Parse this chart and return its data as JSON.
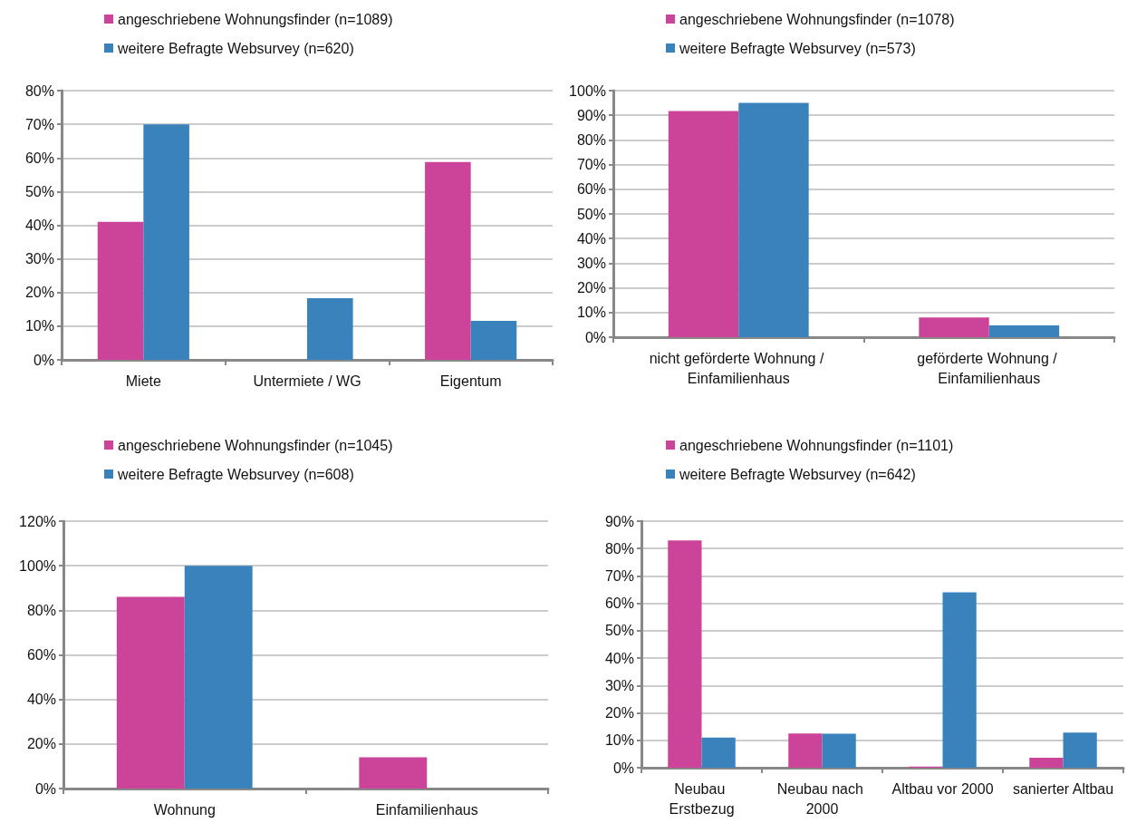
{
  "chart_data": [
    {
      "type": "bar",
      "categories": [
        "Miete",
        "Untermiete / WG",
        "Eigentum"
      ],
      "series": [
        {
          "name": "angeschriebene Wohnungsfinder (n=1089)",
          "color": "#cc4499",
          "values": [
            41,
            0,
            58.8
          ]
        },
        {
          "name": "weitere Befragte Websurvey (n=620)",
          "color": "#3a82bb",
          "values": [
            70,
            18.3,
            11.6
          ]
        }
      ],
      "ylim": [
        0,
        80
      ],
      "yticks": [
        {
          "value": 0,
          "label": "0%"
        },
        {
          "value": 10,
          "label": "10%"
        },
        {
          "value": 20,
          "label": "20%"
        },
        {
          "value": 30,
          "label": "30%"
        },
        {
          "value": 40,
          "label": "40%"
        },
        {
          "value": 50,
          "label": "50%"
        },
        {
          "value": 60,
          "label": "60%"
        },
        {
          "value": 70,
          "label": "70%"
        },
        {
          "value": 80,
          "label": "80%"
        }
      ],
      "grid": "y",
      "legend": "top"
    },
    {
      "type": "bar",
      "categories": [
        "nicht geförderte Wohnung / Einfamilienhaus",
        "geförderte Wohnung / Einfamilienhaus"
      ],
      "series": [
        {
          "name": "angeschriebene Wohnungsfinder (n=1078)",
          "color": "#cc4499",
          "values": [
            91.7,
            8
          ]
        },
        {
          "name": "weitere Befragte Websurvey (n=573)",
          "color": "#3a82bb",
          "values": [
            95,
            4.8
          ]
        }
      ],
      "ylim": [
        0,
        100
      ],
      "yticks": [
        {
          "value": 0,
          "label": "0%"
        },
        {
          "value": 10,
          "label": "10%"
        },
        {
          "value": 20,
          "label": "20%"
        },
        {
          "value": 30,
          "label": "30%"
        },
        {
          "value": 40,
          "label": "40%"
        },
        {
          "value": 50,
          "label": "50%"
        },
        {
          "value": 60,
          "label": "60%"
        },
        {
          "value": 70,
          "label": "70%"
        },
        {
          "value": 80,
          "label": "80%"
        },
        {
          "value": 90,
          "label": "90%"
        },
        {
          "value": 100,
          "label": "100%"
        }
      ],
      "grid": "y",
      "legend": "top"
    },
    {
      "type": "bar",
      "categories": [
        "Wohnung",
        "Einfamilienhaus"
      ],
      "series": [
        {
          "name": "angeschriebene Wohnungsfinder (n=1045)",
          "color": "#cc4499",
          "values": [
            86,
            14
          ]
        },
        {
          "name": "weitere Befragte Websurvey (n=608)",
          "color": "#3a82bb",
          "values": [
            100,
            0
          ]
        }
      ],
      "ylim": [
        0,
        120
      ],
      "yticks": [
        {
          "value": 0,
          "label": "0%"
        },
        {
          "value": 20,
          "label": "20%"
        },
        {
          "value": 40,
          "label": "40%"
        },
        {
          "value": 60,
          "label": "60%"
        },
        {
          "value": 80,
          "label": "80%"
        },
        {
          "value": 100,
          "label": "100%"
        },
        {
          "value": 120,
          "label": "120%"
        }
      ],
      "grid": "y",
      "legend": "top"
    },
    {
      "type": "bar",
      "categories": [
        "Neubau Erstbezug",
        "Neubau nach 2000",
        "Altbau vor 2000",
        "sanierter Altbau"
      ],
      "series": [
        {
          "name": "angeschriebene Wohnungsfinder (n=1101)",
          "color": "#cc4499",
          "values": [
            83,
            12.5,
            0.4,
            3.6
          ]
        },
        {
          "name": "weitere Befragte Websurvey (n=642)",
          "color": "#3a82bb",
          "values": [
            11,
            12.4,
            64,
            12.8
          ]
        }
      ],
      "ylim": [
        0,
        90
      ],
      "yticks": [
        {
          "value": 0,
          "label": "0%"
        },
        {
          "value": 10,
          "label": "10%"
        },
        {
          "value": 20,
          "label": "20%"
        },
        {
          "value": 30,
          "label": "30%"
        },
        {
          "value": 40,
          "label": "40%"
        },
        {
          "value": 50,
          "label": "50%"
        },
        {
          "value": 60,
          "label": "60%"
        },
        {
          "value": 70,
          "label": "70%"
        },
        {
          "value": 80,
          "label": "80%"
        },
        {
          "value": 90,
          "label": "90%"
        }
      ],
      "grid": "y",
      "legend": "top"
    }
  ]
}
